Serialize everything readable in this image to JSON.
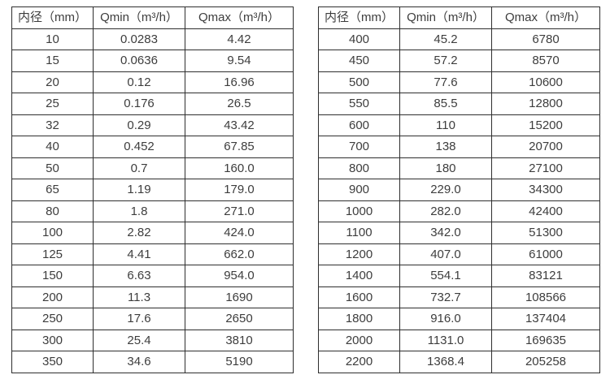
{
  "page": {
    "background_color": "#ffffff",
    "text_color": "#3d3d3d",
    "border_color": "#2e2e2e"
  },
  "headers": [
    "内径（mm）",
    "Qmin（m³/h）",
    "Qmax（m³/h）"
  ],
  "tables": [
    {
      "name": "left",
      "rows": [
        [
          "10",
          "0.0283",
          "4.42"
        ],
        [
          "15",
          "0.0636",
          "9.54"
        ],
        [
          "20",
          "0.12",
          "16.96"
        ],
        [
          "25",
          "0.176",
          "26.5"
        ],
        [
          "32",
          "0.29",
          "43.42"
        ],
        [
          "40",
          "0.452",
          "67.85"
        ],
        [
          "50",
          "0.7",
          "160.0"
        ],
        [
          "65",
          "1.19",
          "179.0"
        ],
        [
          "80",
          "1.8",
          "271.0"
        ],
        [
          "100",
          "2.82",
          "424.0"
        ],
        [
          "125",
          "4.41",
          "662.0"
        ],
        [
          "150",
          "6.63",
          "954.0"
        ],
        [
          "200",
          "11.3",
          "1690"
        ],
        [
          "250",
          "17.6",
          "2650"
        ],
        [
          "300",
          "25.4",
          "3810"
        ],
        [
          "350",
          "34.6",
          "5190"
        ]
      ]
    },
    {
      "name": "right",
      "rows": [
        [
          "400",
          "45.2",
          "6780"
        ],
        [
          "450",
          "57.2",
          "8570"
        ],
        [
          "500",
          "77.6",
          "10600"
        ],
        [
          "550",
          "85.5",
          "12800"
        ],
        [
          "600",
          "110",
          "15200"
        ],
        [
          "700",
          "138",
          "20700"
        ],
        [
          "800",
          "180",
          "27100"
        ],
        [
          "900",
          "229.0",
          "34300"
        ],
        [
          "1000",
          "282.0",
          "42400"
        ],
        [
          "1100",
          "342.0",
          "51300"
        ],
        [
          "1200",
          "407.0",
          "61000"
        ],
        [
          "1400",
          "554.1",
          "83121"
        ],
        [
          "1600",
          "732.7",
          "108566"
        ],
        [
          "1800",
          "916.0",
          "137404"
        ],
        [
          "2000",
          "1131.0",
          "169635"
        ],
        [
          "2200",
          "1368.4",
          "205258"
        ]
      ]
    }
  ]
}
